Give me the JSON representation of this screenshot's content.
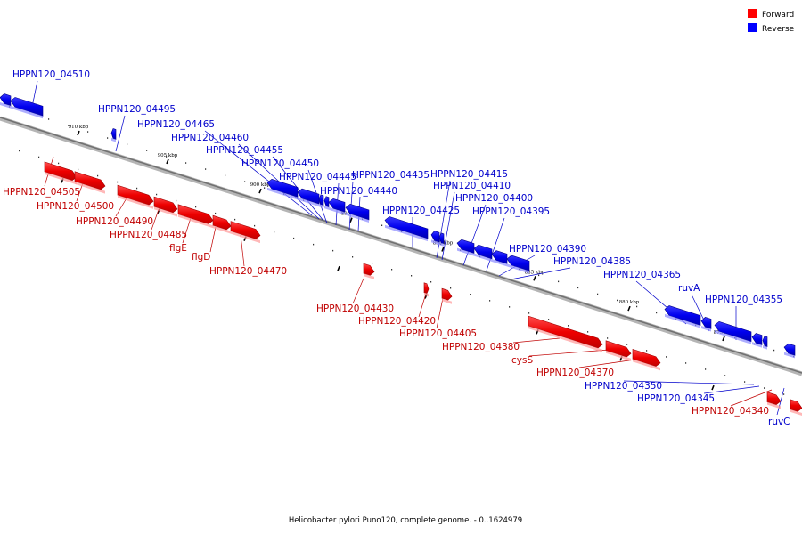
{
  "legend": [
    {
      "label": "Forward",
      "color": "#ff0000"
    },
    {
      "label": "Reverse",
      "color": "#0000ff"
    }
  ],
  "caption": "Helicobacter pylori Puno120, complete genome. - 0..1624979",
  "ticks": [
    "910 kbp",
    "905 kbp",
    "900 kbp",
    "895 kbp",
    "890 kbp",
    "885 kbp",
    "880 kbp",
    "875 kbp"
  ],
  "genes": [
    {
      "label": "HPPN120_04510",
      "strand": "reverse"
    },
    {
      "label": "HPPN120_04505",
      "strand": "forward"
    },
    {
      "label": "HPPN120_04500",
      "strand": "forward"
    },
    {
      "label": "HPPN120_04495",
      "strand": "reverse"
    },
    {
      "label": "HPPN120_04490",
      "strand": "forward"
    },
    {
      "label": "HPPN120_04485",
      "strand": "forward"
    },
    {
      "label": "flgE",
      "strand": "forward"
    },
    {
      "label": "flgD",
      "strand": "forward"
    },
    {
      "label": "HPPN120_04470",
      "strand": "forward"
    },
    {
      "label": "HPPN120_04465",
      "strand": "reverse"
    },
    {
      "label": "HPPN120_04460",
      "strand": "reverse"
    },
    {
      "label": "HPPN120_04455",
      "strand": "reverse"
    },
    {
      "label": "HPPN120_04450",
      "strand": "reverse"
    },
    {
      "label": "HPPN120_04445",
      "strand": "reverse"
    },
    {
      "label": "HPPN120_04440",
      "strand": "reverse"
    },
    {
      "label": "HPPN120_04435",
      "strand": "reverse"
    },
    {
      "label": "HPPN120_04430",
      "strand": "forward"
    },
    {
      "label": "HPPN120_04425",
      "strand": "reverse"
    },
    {
      "label": "HPPN120_04420",
      "strand": "forward"
    },
    {
      "label": "HPPN120_04415",
      "strand": "reverse"
    },
    {
      "label": "HPPN120_04410",
      "strand": "reverse"
    },
    {
      "label": "HPPN120_04405",
      "strand": "forward"
    },
    {
      "label": "HPPN120_04400",
      "strand": "reverse"
    },
    {
      "label": "HPPN120_04395",
      "strand": "reverse"
    },
    {
      "label": "HPPN120_04390",
      "strand": "reverse"
    },
    {
      "label": "HPPN120_04385",
      "strand": "reverse"
    },
    {
      "label": "HPPN120_04380",
      "strand": "forward"
    },
    {
      "label": "cysS",
      "strand": "forward"
    },
    {
      "label": "HPPN120_04370",
      "strand": "forward"
    },
    {
      "label": "HPPN120_04365",
      "strand": "reverse"
    },
    {
      "label": "ruvA",
      "strand": "reverse"
    },
    {
      "label": "HPPN120_04355",
      "strand": "reverse"
    },
    {
      "label": "HPPN120_04350",
      "strand": "reverse"
    },
    {
      "label": "HPPN120_04345",
      "strand": "reverse"
    },
    {
      "label": "HPPN120_04340",
      "strand": "forward"
    },
    {
      "label": "ruvC",
      "strand": "reverse"
    }
  ]
}
